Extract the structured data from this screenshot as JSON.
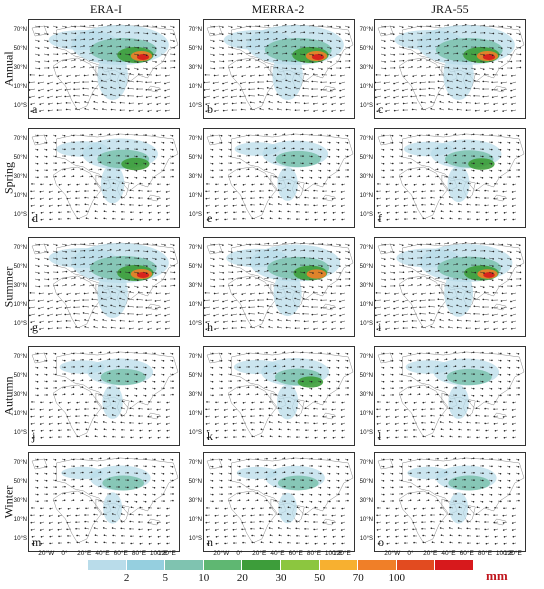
{
  "columns": [
    "ERA-I",
    "MERRA-2",
    "JRA-55"
  ],
  "rows": [
    "Annual",
    "Spring",
    "Summer",
    "Autumn",
    "Winter"
  ],
  "panel_letters": [
    "a",
    "b",
    "c",
    "d",
    "e",
    "f",
    "g",
    "h",
    "i",
    "j",
    "k",
    "l",
    "m",
    "n",
    "o"
  ],
  "lat_ticks": [
    "70°N",
    "50°N",
    "30°N",
    "10°N",
    "10°S"
  ],
  "lon_ticks": [
    "20°W",
    "0°",
    "20°E",
    "40°E",
    "60°E",
    "80°E",
    "100°E",
    "120°E"
  ],
  "colorbar": {
    "ticks": [
      "2",
      "5",
      "10",
      "20",
      "30",
      "50",
      "70",
      "100"
    ],
    "unit": "mm",
    "colors": [
      "#b9dcea",
      "#95cfdf",
      "#7fc3b0",
      "#5fb772",
      "#3d9d3a",
      "#8cc63f",
      "#f7b030",
      "#f07f28",
      "#e24b20",
      "#d7191c"
    ]
  },
  "intensity": [
    [
      1.0,
      1.0,
      1.0
    ],
    [
      0.55,
      0.35,
      0.45
    ],
    [
      1.0,
      0.85,
      0.9
    ],
    [
      0.35,
      0.4,
      0.35
    ],
    [
      0.25,
      0.22,
      0.25
    ]
  ]
}
